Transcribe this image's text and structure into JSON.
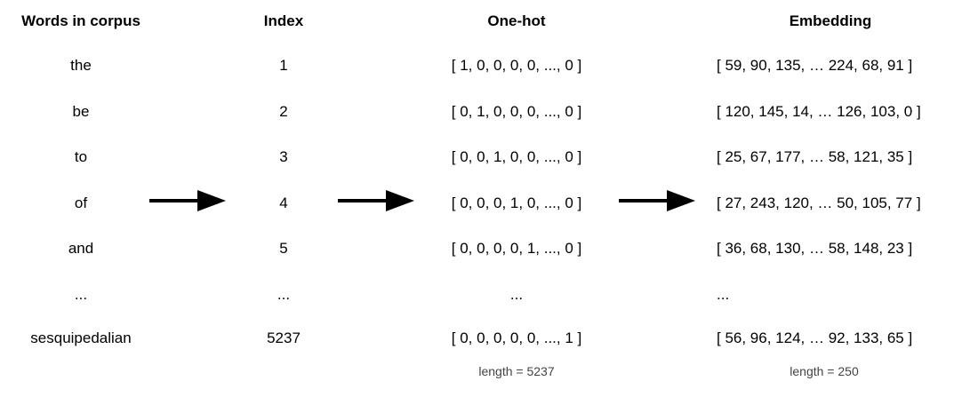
{
  "columns": {
    "words": {
      "header": "Words in corpus",
      "rows": [
        "the",
        "be",
        "to",
        "of",
        "and",
        "...",
        "sesquipedalian"
      ]
    },
    "index": {
      "header": "Index",
      "rows": [
        "1",
        "2",
        "3",
        "4",
        "5",
        "...",
        "5237"
      ]
    },
    "onehot": {
      "header": "One-hot",
      "rows": [
        "[ 1, 0, 0, 0, 0, ..., 0 ]",
        "[ 0, 1, 0, 0, 0, ..., 0 ]",
        "[ 0, 0, 1, 0, 0, ..., 0 ]",
        "[ 0, 0, 0, 1, 0, ..., 0 ]",
        "[ 0, 0, 0, 0, 1, ..., 0 ]",
        "...",
        "[ 0, 0, 0, 0, 0, ..., 1 ]"
      ],
      "note": "length = 5237"
    },
    "embedding": {
      "header": "Embedding",
      "rows": [
        "[ 59, 90, 135, … 224, 68, 91 ]",
        "[ 120, 145, 14, … 126, 103, 0 ]",
        "[ 25, 67, 177, … 58, 121, 35 ]",
        "[ 27, 243, 120, … 50, 105, 77 ]",
        "[ 36, 68, 130, … 58, 148, 23 ]",
        "...",
        "[ 56, 96, 124, … 92, 133, 65 ]"
      ],
      "note": "length = 250"
    }
  },
  "arrows": [
    "arrow-right-icon",
    "arrow-right-icon",
    "arrow-right-icon"
  ],
  "colors": {
    "text": "#000000",
    "note": "#444444",
    "arrow": "#000000"
  }
}
